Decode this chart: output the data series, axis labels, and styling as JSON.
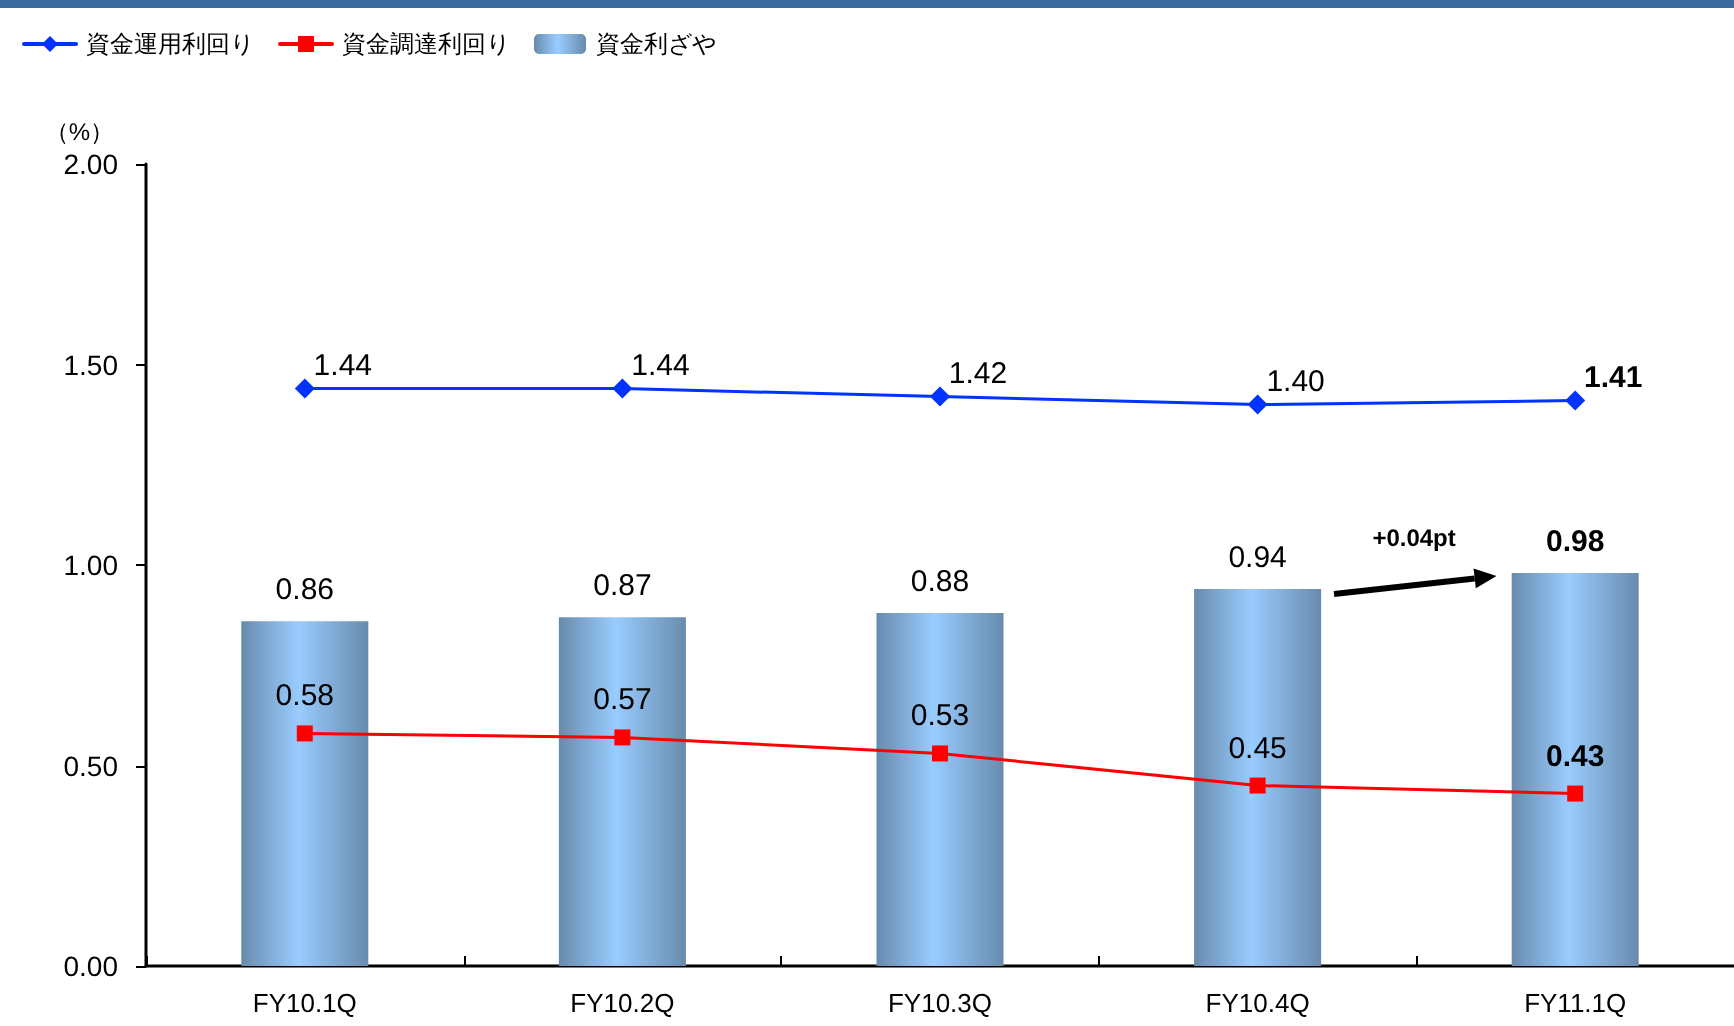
{
  "chart_data": {
    "type": "bar",
    "ylabel": "（%）",
    "categories": [
      "FY10.1Q",
      "FY10.2Q",
      "FY10.3Q",
      "FY10.4Q",
      "FY11.1Q"
    ],
    "series": [
      {
        "name": "資金運用利回り",
        "type": "line",
        "marker": "diamond",
        "color": "#0033ff",
        "values": [
          1.44,
          1.44,
          1.42,
          1.4,
          1.41
        ],
        "value_labels": [
          "1.44",
          "1.44",
          "1.42",
          "1.40",
          "1.41"
        ]
      },
      {
        "name": "資金調達利回り",
        "type": "line",
        "marker": "square",
        "color": "#ff0000",
        "values": [
          0.58,
          0.57,
          0.53,
          0.45,
          0.43
        ],
        "value_labels": [
          "0.58",
          "0.57",
          "0.53",
          "0.45",
          "0.43"
        ]
      },
      {
        "name": "資金利ざや",
        "color": "#99ccff",
        "values": [
          0.86,
          0.87,
          0.88,
          0.94,
          0.98
        ],
        "value_labels": [
          "0.86",
          "0.87",
          "0.88",
          "0.94",
          "0.98"
        ]
      }
    ],
    "ylim": [
      0,
      2
    ],
    "yticks": [
      {
        "value": 0,
        "label": "0.00"
      },
      {
        "value": 0.5,
        "label": "0.50"
      },
      {
        "value": 1,
        "label": "1.00"
      },
      {
        "value": 1.5,
        "label": "1.50"
      },
      {
        "value": 2,
        "label": "2.00"
      }
    ],
    "annotations": [
      "+0.04pt"
    ],
    "legend": "top left",
    "grid": false
  }
}
